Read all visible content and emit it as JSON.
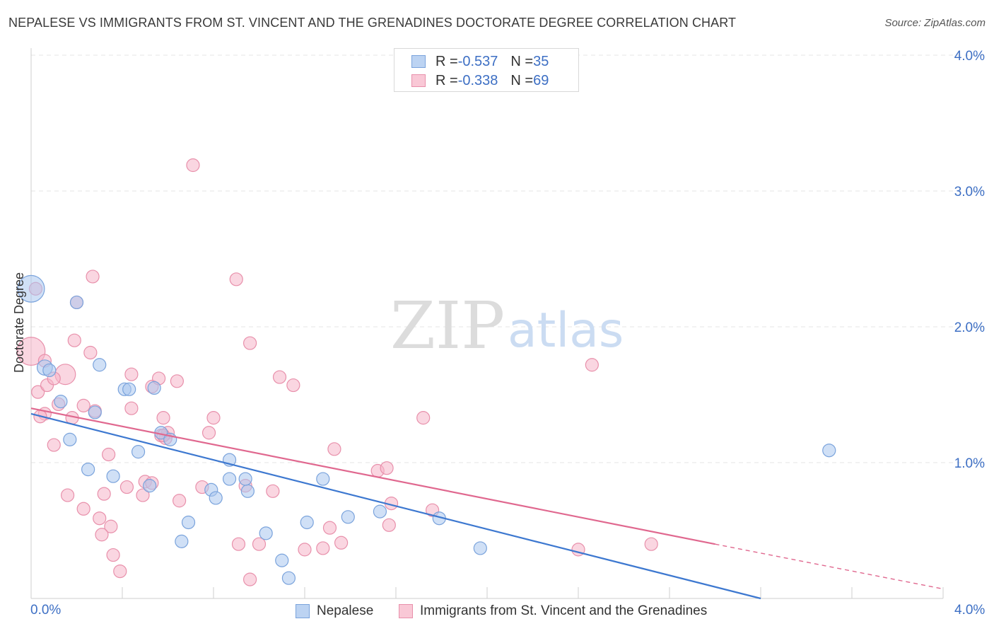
{
  "title": "NEPALESE VS IMMIGRANTS FROM ST. VINCENT AND THE GRENADINES DOCTORATE DEGREE CORRELATION CHART",
  "source": "Source: ZipAtlas.com",
  "watermark": {
    "zip": "ZIP",
    "atlas": "atlas"
  },
  "colors": {
    "blue_fill": "#a9c6ee",
    "blue_stroke": "#7aa3dc",
    "blue_line": "#3d78d0",
    "pink_fill": "#f5b5c8",
    "pink_stroke": "#e890ab",
    "pink_line": "#e0688f",
    "tick_label": "#3d6fc4"
  },
  "legend_top": {
    "rows": [
      {
        "r_label": "R = ",
        "r_value": "-0.537",
        "n_label": "N = ",
        "n_value": "35"
      },
      {
        "r_label": "R = ",
        "r_value": "-0.338",
        "n_label": "N = ",
        "n_value": "69"
      }
    ]
  },
  "legend_bottom": [
    "Nepalese",
    "Immigrants from St. Vincent and the Grenadines"
  ],
  "chart_data": {
    "type": "scatter",
    "ylabel": "Doctorate Degree",
    "x_tick_labels": [
      "0.0%",
      "4.0%"
    ],
    "y_tick_labels": [
      "1.0%",
      "2.0%",
      "3.0%",
      "4.0%"
    ],
    "y_ticks": [
      1.0,
      2.0,
      3.0,
      4.0
    ],
    "xlim": [
      0,
      4.0
    ],
    "ylim": [
      0,
      4.0
    ],
    "grid": true,
    "series": [
      {
        "name": "Nepalese",
        "r": -0.537,
        "n": 35,
        "trend": {
          "x0": 0.0,
          "y0": 1.36,
          "x1": 3.2,
          "y1": 0.0,
          "dashed_to": null
        },
        "points": [
          [
            0.0,
            2.28,
            2.1
          ],
          [
            0.06,
            1.7,
            1.2
          ],
          [
            0.2,
            2.18,
            1.0
          ],
          [
            0.3,
            1.72,
            1.0
          ],
          [
            0.13,
            1.45,
            1.0
          ],
          [
            0.28,
            1.37,
            1.0
          ],
          [
            0.41,
            1.54,
            1.0
          ],
          [
            0.43,
            1.54,
            1.0
          ],
          [
            0.54,
            1.55,
            1.0
          ],
          [
            0.17,
            1.17,
            1.0
          ],
          [
            0.47,
            1.08,
            1.0
          ],
          [
            0.57,
            1.22,
            1.0
          ],
          [
            0.61,
            1.17,
            1.0
          ],
          [
            0.25,
            0.95,
            1.0
          ],
          [
            0.36,
            0.9,
            1.0
          ],
          [
            0.52,
            0.83,
            1.0
          ],
          [
            0.87,
            1.02,
            1.0
          ],
          [
            0.79,
            0.8,
            1.0
          ],
          [
            0.87,
            0.88,
            1.0
          ],
          [
            0.95,
            0.79,
            1.0
          ],
          [
            0.81,
            0.74,
            1.0
          ],
          [
            0.94,
            0.88,
            1.0
          ],
          [
            1.28,
            0.88,
            1.0
          ],
          [
            0.69,
            0.56,
            1.0
          ],
          [
            0.66,
            0.42,
            1.0
          ],
          [
            1.03,
            0.48,
            1.0
          ],
          [
            1.21,
            0.56,
            1.0
          ],
          [
            1.39,
            0.6,
            1.0
          ],
          [
            1.53,
            0.64,
            1.0
          ],
          [
            1.79,
            0.59,
            1.0
          ],
          [
            1.1,
            0.28,
            1.0
          ],
          [
            1.13,
            0.15,
            1.0
          ],
          [
            1.97,
            0.37,
            1.0
          ],
          [
            3.5,
            1.09,
            1.0
          ],
          [
            0.08,
            1.68,
            1.0
          ]
        ]
      },
      {
        "name": "Immigrants from St. Vincent and the Grenadines",
        "r": -0.338,
        "n": 69,
        "trend": {
          "x0": 0.0,
          "y0": 1.4,
          "x1": 3.0,
          "y1": 0.4,
          "dashed_to": [
            4.0,
            0.07
          ]
        },
        "points": [
          [
            0.0,
            1.82,
            2.2
          ],
          [
            0.02,
            2.28,
            1.0
          ],
          [
            0.15,
            1.65,
            1.6
          ],
          [
            0.06,
            1.75,
            1.0
          ],
          [
            0.03,
            1.52,
            1.0
          ],
          [
            0.07,
            1.57,
            1.0
          ],
          [
            0.1,
            1.62,
            1.0
          ],
          [
            0.19,
            1.9,
            1.0
          ],
          [
            0.26,
            1.81,
            1.0
          ],
          [
            0.27,
            2.37,
            1.0
          ],
          [
            0.2,
            2.18,
            1.0
          ],
          [
            0.12,
            1.43,
            1.0
          ],
          [
            0.23,
            1.42,
            1.0
          ],
          [
            0.06,
            1.36,
            1.0
          ],
          [
            0.04,
            1.34,
            1.0
          ],
          [
            0.18,
            1.33,
            1.0
          ],
          [
            0.28,
            1.38,
            1.0
          ],
          [
            0.44,
            1.4,
            1.0
          ],
          [
            0.44,
            1.65,
            1.0
          ],
          [
            0.53,
            1.56,
            1.0
          ],
          [
            0.56,
            1.62,
            1.0
          ],
          [
            0.64,
            1.6,
            1.0
          ],
          [
            0.58,
            1.33,
            1.0
          ],
          [
            0.57,
            1.2,
            1.0
          ],
          [
            0.6,
            1.22,
            1.0
          ],
          [
            0.59,
            1.18,
            1.0
          ],
          [
            0.1,
            1.13,
            1.0
          ],
          [
            0.34,
            1.06,
            1.0
          ],
          [
            0.42,
            0.82,
            1.0
          ],
          [
            0.5,
            0.86,
            1.0
          ],
          [
            0.53,
            0.85,
            1.0
          ],
          [
            0.49,
            0.76,
            1.0
          ],
          [
            0.16,
            0.76,
            1.0
          ],
          [
            0.23,
            0.66,
            1.0
          ],
          [
            0.32,
            0.77,
            1.0
          ],
          [
            0.3,
            0.59,
            1.0
          ],
          [
            0.35,
            0.53,
            1.0
          ],
          [
            0.31,
            0.47,
            1.0
          ],
          [
            0.36,
            0.32,
            1.0
          ],
          [
            0.39,
            0.2,
            1.0
          ],
          [
            0.65,
            0.72,
            1.0
          ],
          [
            0.71,
            3.19,
            1.0
          ],
          [
            0.78,
            1.22,
            1.0
          ],
          [
            0.8,
            1.33,
            1.0
          ],
          [
            0.9,
            2.35,
            1.0
          ],
          [
            0.94,
            0.83,
            1.0
          ],
          [
            0.91,
            0.4,
            1.0
          ],
          [
            0.96,
            1.88,
            1.0
          ],
          [
            1.06,
            0.79,
            1.0
          ],
          [
            1.09,
            1.63,
            1.0
          ],
          [
            1.0,
            0.4,
            1.0
          ],
          [
            1.15,
            1.57,
            1.0
          ],
          [
            1.2,
            0.36,
            1.0
          ],
          [
            1.28,
            0.37,
            1.0
          ],
          [
            1.31,
            0.52,
            1.0
          ],
          [
            1.33,
            1.1,
            1.0
          ],
          [
            1.36,
            0.41,
            1.0
          ],
          [
            1.52,
            0.94,
            1.0
          ],
          [
            1.56,
            0.96,
            1.0
          ],
          [
            1.58,
            0.7,
            1.0
          ],
          [
            1.57,
            0.54,
            1.0
          ],
          [
            1.72,
            1.33,
            1.0
          ],
          [
            1.76,
            0.65,
            1.0
          ],
          [
            0.96,
            0.14,
            1.0
          ],
          [
            2.46,
            1.72,
            1.0
          ],
          [
            2.4,
            0.36,
            1.0
          ],
          [
            2.72,
            0.4,
            1.0
          ],
          [
            0.58,
            1.2,
            1.0
          ],
          [
            0.75,
            0.82,
            1.0
          ]
        ]
      }
    ]
  }
}
